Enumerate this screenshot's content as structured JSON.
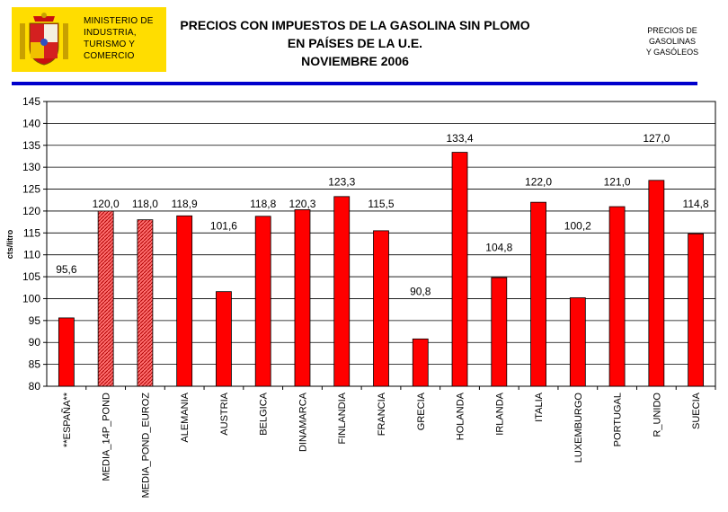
{
  "header": {
    "ministry_lines": [
      "MINISTERIO DE",
      "INDUSTRIA,",
      "TURISMO Y",
      "COMERCIO"
    ],
    "title_lines": [
      "PRECIOS CON IMPUESTOS DE LA GASOLINA SIN PLOMO",
      "EN PAÍSES DE LA U.E.",
      "NOVIEMBRE  2006"
    ],
    "side_note_lines": [
      "PRECIOS DE",
      "GASOLINAS",
      "Y GASÓLEOS"
    ]
  },
  "colors": {
    "bar": "#ff0000",
    "bar_hatched": "#ff6060",
    "bar_outline": "#000000",
    "rule": "#0000cc",
    "logo_bg": "#ffdd00"
  },
  "chart_data": {
    "type": "bar",
    "ylabel": "cts/litro",
    "xlabel": "",
    "ylim": [
      80,
      145
    ],
    "ytick_step": 5,
    "grid": true,
    "categories": [
      "**ESPAÑA**",
      "MEDIA_14P_POND",
      "MEDIA_POND_EUROZ",
      "ALEMANIA",
      "AUSTRIA",
      "BELGICA",
      "DINAMARCA",
      "FINLANDIA",
      "FRANCIA",
      "GRECIA",
      "HOLANDA",
      "IRLANDA",
      "ITALIA",
      "LUXEMBURGO",
      "PORTUGAL",
      "R_UNIDO",
      "SUECIA"
    ],
    "values": [
      95.6,
      120.0,
      118.0,
      118.9,
      101.6,
      118.8,
      120.3,
      123.3,
      115.5,
      90.8,
      133.4,
      104.8,
      122.0,
      100.2,
      121.0,
      127.0,
      114.8
    ],
    "value_labels": [
      "95,6",
      "120,0",
      "118,0",
      "118,9",
      "101,6",
      "118,8",
      "120,3",
      "123,3",
      "115,5",
      "90,8",
      "133,4",
      "104,8",
      "122,0",
      "100,2",
      "121,0",
      "127,0",
      "114,8"
    ],
    "label_values": [
      105,
      120,
      120,
      120,
      115,
      120,
      120,
      125,
      120,
      100,
      135,
      110,
      125,
      115,
      125,
      135,
      120
    ],
    "hatched": [
      false,
      true,
      true,
      false,
      false,
      false,
      false,
      false,
      false,
      false,
      false,
      false,
      false,
      false,
      false,
      false,
      false
    ]
  }
}
